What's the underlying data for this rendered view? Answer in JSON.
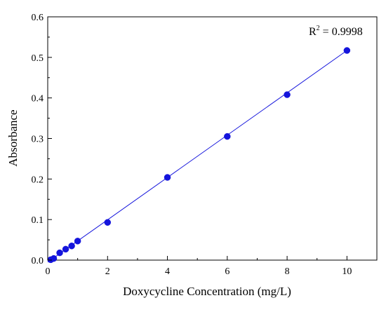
{
  "chart_data": {
    "type": "scatter",
    "title": "",
    "xlabel": "Doxycycline Concentration (mg/L)",
    "ylabel": "Absorbance",
    "xlim": [
      0,
      11
    ],
    "ylim": [
      0,
      0.6
    ],
    "x_ticks": [
      0,
      2,
      4,
      6,
      8,
      10
    ],
    "y_ticks": [
      0.0,
      0.1,
      0.2,
      0.3,
      0.4,
      0.5,
      0.6
    ],
    "x_tick_labels": [
      "0",
      "2",
      "4",
      "6",
      "8",
      "10"
    ],
    "y_tick_labels": [
      "0.0",
      "0.1",
      "0.2",
      "0.3",
      "0.4",
      "0.5",
      "0.6"
    ],
    "grid": false,
    "series": [
      {
        "x": [
          0.1,
          0.2,
          0.4,
          0.6,
          0.8,
          1,
          2,
          4,
          6,
          8,
          10
        ],
        "y": [
          0.001,
          0.004,
          0.018,
          0.027,
          0.035,
          0.047,
          0.093,
          0.204,
          0.305,
          0.408,
          0.517
        ],
        "marker": "circle",
        "color": "#1414dc"
      }
    ],
    "fit_line": {
      "x": [
        0,
        10
      ],
      "y": [
        -0.005,
        0.517
      ],
      "color": "#1414dc"
    },
    "annotation": {
      "text_base": "R",
      "text_sup": "2",
      "text_rest": " = 0.9998"
    }
  }
}
